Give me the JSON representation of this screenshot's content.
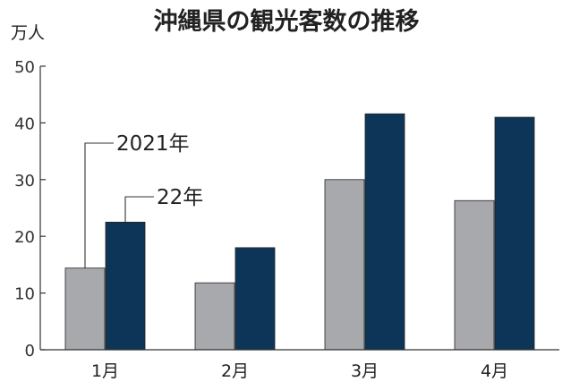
{
  "chart_data": {
    "type": "bar",
    "title": "沖縄県の観光客数の推移",
    "unit_label": "万人",
    "categories": [
      "1月",
      "2月",
      "3月",
      "4月"
    ],
    "series": [
      {
        "name": "2021年",
        "color": "#a7a9ad",
        "values": [
          14.4,
          11.8,
          30.0,
          26.3
        ]
      },
      {
        "name": "22年",
        "color": "#0d3558",
        "values": [
          22.5,
          18.0,
          41.6,
          41.0
        ]
      }
    ],
    "ylim": [
      0,
      50
    ],
    "yticks": [
      "0",
      "10",
      "20",
      "30",
      "40",
      "50"
    ],
    "grid": false,
    "legend": "callout-labels"
  }
}
